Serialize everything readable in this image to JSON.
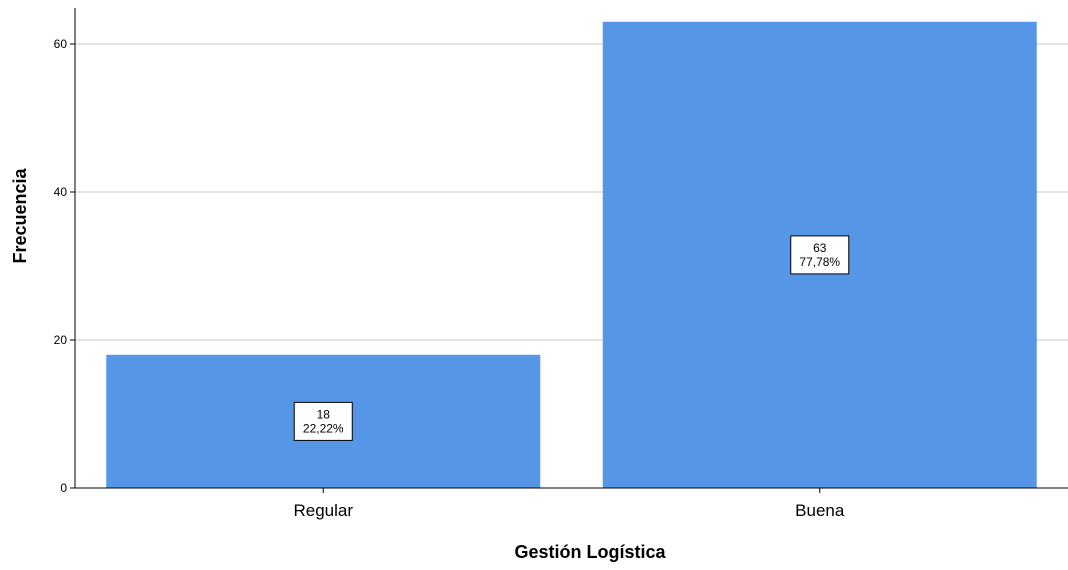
{
  "chart_data": {
    "type": "bar",
    "categories": [
      "Regular",
      "Buena"
    ],
    "values": [
      18,
      63
    ],
    "percent_labels": [
      "22,22%",
      "77,78%"
    ],
    "xlabel": "Gestión Logística",
    "ylabel": "Frecuencia",
    "ylim": [
      0,
      64
    ],
    "yticks": [
      0,
      20,
      40,
      60
    ],
    "grid": true,
    "bar_color": "#5596e6",
    "grid_color": "#c8c8c8"
  }
}
